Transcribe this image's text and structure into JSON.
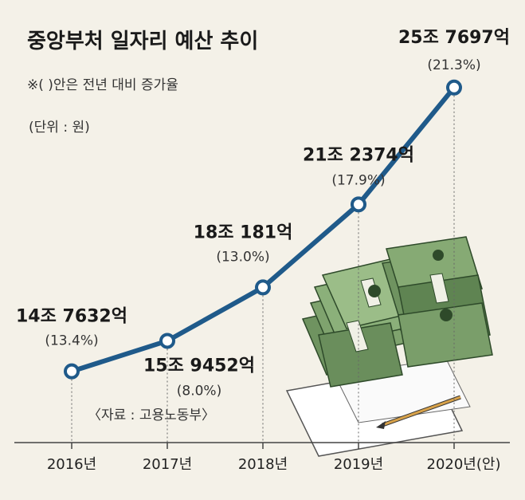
{
  "header": {
    "title": "중앙부처 일자리 예산 추이",
    "note": "※(    )안은 전년 대비 증가율",
    "unit": "(단위 : 원)"
  },
  "source": "〈자료 : 고용노동부〉",
  "colors": {
    "background": "#f4f1e8",
    "line": "#1f5a8a",
    "marker_fill": "#ffffff",
    "money_green": "#7a9e6a",
    "money_dark": "#3f5f3a"
  },
  "illustration": "money-stack-icon",
  "chart_data": {
    "type": "line",
    "title": "중앙부처 일자리 예산 추이",
    "categories": [
      "2016년",
      "2017년",
      "2018년",
      "2019년",
      "2020년(안)"
    ],
    "values": [
      14.7632,
      15.9452,
      18.0181,
      21.2374,
      25.7697
    ],
    "value_labels": [
      "14조 7632억",
      "15조 9452억",
      "18조 181억",
      "21조 2374억",
      "25조 7697억"
    ],
    "growth_labels": [
      "(13.4%)",
      "(8.0%)",
      "(13.0%)",
      "(17.9%)",
      "(21.3%)"
    ],
    "ylim": [
      12,
      27
    ],
    "grid": false,
    "legend": "none"
  }
}
